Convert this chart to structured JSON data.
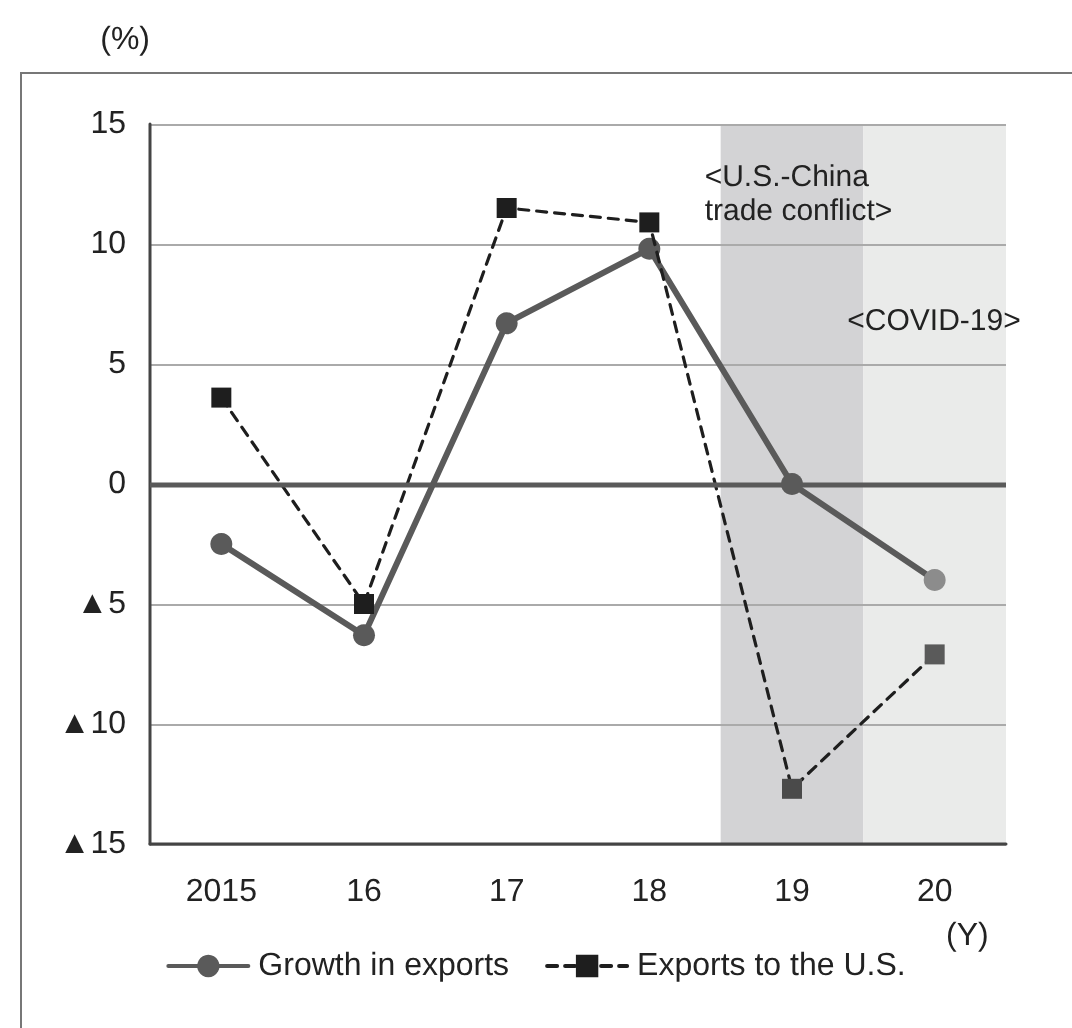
{
  "chart_data": {
    "type": "line",
    "categories": [
      "2015",
      "16",
      "17",
      "18",
      "19",
      "20"
    ],
    "series": [
      {
        "name": "Growth in exports",
        "color": "#5a5a5a",
        "colors": [
          "#5a5a5a",
          "#5a5a5a",
          "#5a5a5a",
          "#5a5a5a",
          "#5a5a5a",
          "#8c8c8c"
        ],
        "marker": "circle",
        "line_style": "solid",
        "values": [
          -2.5,
          -6.3,
          6.7,
          9.8,
          0,
          -4.0
        ]
      },
      {
        "name": "Exports to the U.S.",
        "color": "#1e1e1e",
        "colors": [
          "#1e1e1e",
          "#1e1e1e",
          "#1e1e1e",
          "#1e1e1e",
          "#4a4a4a",
          "#5a5a5a"
        ],
        "marker": "square",
        "line_style": "dashed",
        "values": [
          3.6,
          -5.0,
          11.5,
          10.9,
          -12.7,
          -7.1
        ]
      }
    ],
    "ylim": [
      -15,
      15
    ],
    "yticks": [
      {
        "value": -15,
        "label": "▲15"
      },
      {
        "value": -10,
        "label": "▲10"
      },
      {
        "value": -5,
        "label": "▲5"
      },
      0,
      5,
      10,
      15
    ],
    "ylabel": "(%)",
    "xlabel": "(Y)",
    "grid": "y",
    "legend": "bottom",
    "ref_lines": [
      {
        "axis": "y",
        "value": 0,
        "color": "#5a5a5a"
      }
    ],
    "bands": [
      {
        "axis": "x",
        "from": "19",
        "to": "19",
        "label": "<U.S.-China\ntrade conflict>",
        "color": "#d3d3d5"
      },
      {
        "axis": "x",
        "from": "20",
        "to": "20",
        "label": "<COVID-19>",
        "color": "#eaebea"
      }
    ]
  }
}
